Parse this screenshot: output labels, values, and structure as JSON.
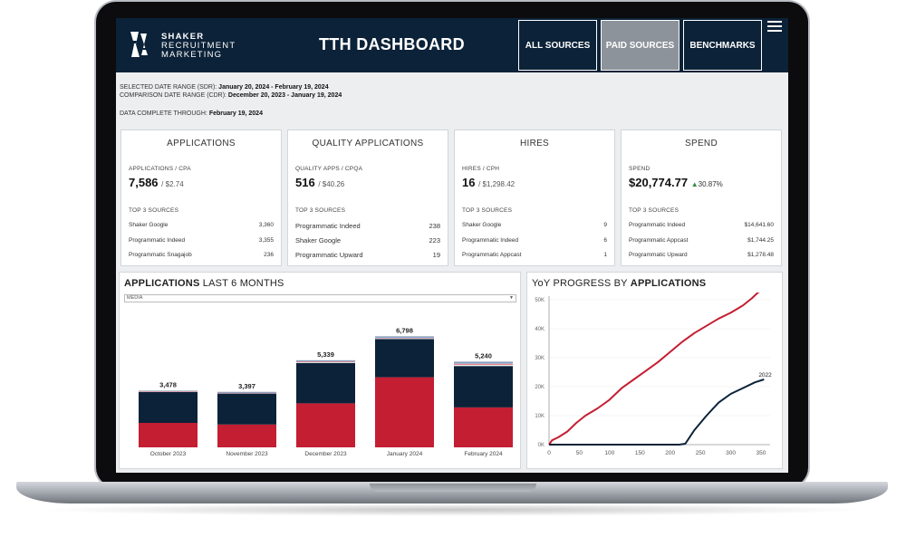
{
  "header": {
    "brand_line1": "SHAKER",
    "brand_line2": "RECRUITMENT",
    "brand_line3": "MARKETING",
    "title": "TTH DASHBOARD",
    "nav": [
      {
        "label": "ALL SOURCES"
      },
      {
        "label": "PAID SOURCES"
      },
      {
        "label": "BENCHMARKS"
      }
    ]
  },
  "meta": {
    "sdr_label": "SELECTED DATE RANGE (SDR):",
    "sdr_value": "January 20, 2024 - February 19, 2024",
    "cdr_label": "COMPARISON DATE RANGE (CDR):",
    "cdr_value": "December 20, 2023 - January 19, 2024",
    "complete_label": "DATA COMPLETE THROUGH:",
    "complete_value": "February 19, 2024"
  },
  "cards": [
    {
      "title": "APPLICATIONS",
      "sub": "APPLICATIONS / CPA",
      "value": "7,586",
      "secondary": "/ $2.74",
      "top3": "TOP 3 SOURCES",
      "rows": [
        {
          "name": "Shaker Google",
          "val": "3,360"
        },
        {
          "name": "Programmatic Indeed",
          "val": "3,355"
        },
        {
          "name": "Programmatic Snagajob",
          "val": "236"
        }
      ]
    },
    {
      "title": "QUALITY APPLICATIONS",
      "sub": "QUALITY APPS / CPQA",
      "value": "516",
      "secondary": "/ $40.26",
      "top3": "TOP 3 SOURCES",
      "rows": [
        {
          "name": "Programmatic Indeed",
          "val": "238"
        },
        {
          "name": "Shaker Google",
          "val": "223"
        },
        {
          "name": "Programmatic Upward",
          "val": "19"
        }
      ]
    },
    {
      "title": "HIRES",
      "sub": "HIRES / CPH",
      "value": "16",
      "secondary": "/ $1,298.42",
      "top3": "TOP 3 SOURCES",
      "rows": [
        {
          "name": "Shaker Google",
          "val": "9"
        },
        {
          "name": "Programmatic Indeed",
          "val": "6"
        },
        {
          "name": "Programmatic Appcast",
          "val": "1"
        }
      ]
    },
    {
      "title": "SPEND",
      "sub": "SPEND",
      "value": "$20,774.77",
      "secondary": "30.87%",
      "top3": "TOP 3 SOURCES",
      "rows": [
        {
          "name": "Programmatic Indeed",
          "val": "$14,641.60"
        },
        {
          "name": "Programmatic Appcast",
          "val": "$1,744.25"
        },
        {
          "name": "Programmatic Upward",
          "val": "$1,278.48"
        }
      ]
    }
  ],
  "bar_panel": {
    "title_bold": "APPLICATIONS",
    "title_rest": "LAST 6 MONTHS",
    "select_value": "MEDIA"
  },
  "line_panel": {
    "title_rest": "YoY PROGRESS BY",
    "title_bold": "APPLICATIONS"
  },
  "colors": {
    "navy": "#0c2238",
    "red": "#c41e33",
    "green": "#2e8b3e"
  },
  "chart_data": [
    {
      "type": "bar",
      "stacked": true,
      "categories": [
        "October 2023",
        "November 2023",
        "December 2023",
        "January 2024",
        "February 2024"
      ],
      "totals": [
        3478,
        3397,
        5339,
        6798,
        5240
      ],
      "total_labels": [
        "3,478",
        "3,397",
        "5,339",
        "6,798",
        "5,240"
      ],
      "series": [
        {
          "color": "#c41e33",
          "values": [
            1500,
            1400,
            2700,
            4300,
            2450
          ]
        },
        {
          "color": "#0c2238",
          "values": [
            1900,
            1900,
            2480,
            2350,
            2540
          ]
        },
        {
          "color": "#f2f2f2",
          "values": [
            20,
            20,
            50,
            30,
            80
          ]
        },
        {
          "color": "#d9586a",
          "values": [
            30,
            30,
            40,
            30,
            60
          ]
        },
        {
          "color": "#a9c4dc",
          "values": [
            10,
            10,
            30,
            40,
            50
          ]
        },
        {
          "color": "#5a8fc0",
          "values": [
            10,
            30,
            20,
            30,
            40
          ]
        },
        {
          "color": "#1f3f66",
          "values": [
            8,
            7,
            19,
            18,
            20
          ]
        }
      ],
      "ylim": [
        0,
        7500
      ]
    },
    {
      "type": "line",
      "xlim": [
        0,
        365
      ],
      "ylim": [
        0,
        50000
      ],
      "x_ticks": [
        0,
        50,
        100,
        150,
        200,
        250,
        300,
        350
      ],
      "y_ticks": [
        0,
        10000,
        20000,
        30000,
        40000,
        50000
      ],
      "y_tick_labels": [
        "0K",
        "10K",
        "20K",
        "30K",
        "40K",
        "50K"
      ],
      "series": [
        {
          "name": "2023",
          "color": "#c41e33",
          "points": [
            [
              0,
              0
            ],
            [
              5,
              1500
            ],
            [
              15,
              2500
            ],
            [
              30,
              4500
            ],
            [
              45,
              7500
            ],
            [
              60,
              10000
            ],
            [
              80,
              12500
            ],
            [
              100,
              15500
            ],
            [
              120,
              19500
            ],
            [
              140,
              22500
            ],
            [
              160,
              25500
            ],
            [
              180,
              28500
            ],
            [
              200,
              32000
            ],
            [
              220,
              35500
            ],
            [
              240,
              38500
            ],
            [
              260,
              41000
            ],
            [
              280,
              43500
            ],
            [
              300,
              45500
            ],
            [
              320,
              48000
            ],
            [
              335,
              50500
            ],
            [
              345,
              52500
            ],
            [
              355,
              53500
            ]
          ]
        },
        {
          "name": "2022",
          "color": "#0c2238",
          "points": [
            [
              0,
              0
            ],
            [
              50,
              0
            ],
            [
              100,
              0
            ],
            [
              150,
              0
            ],
            [
              200,
              0
            ],
            [
              215,
              0
            ],
            [
              225,
              300
            ],
            [
              240,
              5000
            ],
            [
              260,
              10000
            ],
            [
              280,
              14500
            ],
            [
              300,
              17500
            ],
            [
              320,
              19500
            ],
            [
              340,
              21500
            ],
            [
              355,
              22500
            ]
          ]
        }
      ]
    }
  ]
}
